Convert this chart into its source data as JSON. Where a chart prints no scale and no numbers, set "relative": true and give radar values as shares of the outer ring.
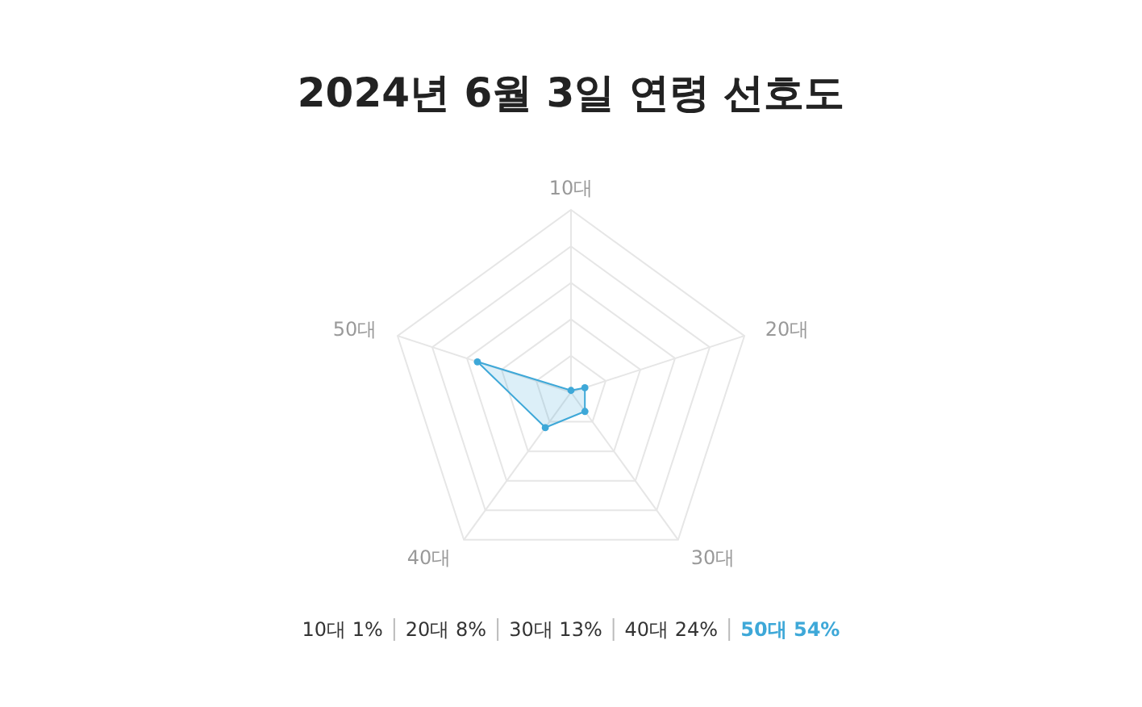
{
  "chart_data": {
    "type": "radar",
    "title": "2024년 6월 3일 연령 선호도",
    "relative": true,
    "grid": true,
    "marker": "circle",
    "categories": [
      "10대",
      "20대",
      "30대",
      "40대",
      "50대"
    ],
    "series": [
      {
        "color": "#3ea8d8",
        "values": [
          0.01,
          0.08,
          0.13,
          0.24,
          0.54
        ]
      }
    ],
    "annotations": [
      "10대 1%",
      "20대 8%",
      "30대 13%",
      "40대 24%",
      "50대 54%"
    ]
  }
}
